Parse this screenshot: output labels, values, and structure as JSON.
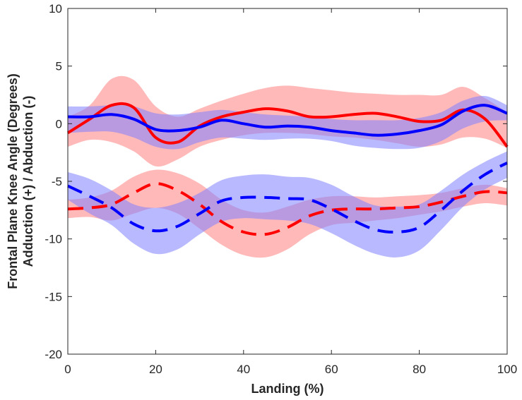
{
  "chart_data": {
    "type": "line",
    "title": "",
    "xlabel": "Landing (%)",
    "ylabel_line1": "Frontal Plane Knee Angle (Degrees)",
    "ylabel_line2": "Adduction (+) / Abduction (-)",
    "xlim": [
      0,
      100
    ],
    "ylim": [
      -20,
      10
    ],
    "xticks": [
      0,
      20,
      40,
      60,
      80,
      100
    ],
    "yticks": [
      -20,
      -15,
      -10,
      -5,
      0,
      5,
      10
    ],
    "grid": false,
    "x": [
      0,
      5,
      10,
      15,
      20,
      25,
      30,
      35,
      40,
      45,
      50,
      55,
      60,
      65,
      70,
      75,
      80,
      85,
      90,
      95,
      100
    ],
    "series": [
      {
        "name": "red-solid",
        "color": "#ff0000",
        "band_color": "#ff8080",
        "dash": "solid",
        "values": [
          -0.8,
          0.4,
          1.6,
          1.4,
          -1.2,
          -1.6,
          -0.2,
          0.6,
          1.0,
          1.3,
          1.1,
          0.6,
          0.6,
          0.8,
          0.9,
          0.6,
          0.2,
          0.3,
          1.2,
          0.4,
          -2.0
        ],
        "lower": [
          -2.0,
          -1.4,
          -1.6,
          -2.4,
          -3.7,
          -3.1,
          -2.0,
          -1.4,
          -1.0,
          -0.8,
          -0.8,
          -0.9,
          -1.1,
          -1.2,
          -1.4,
          -1.7,
          -2.0,
          -1.8,
          -1.2,
          -1.3,
          -2.1
        ],
        "upper": [
          0.6,
          1.6,
          3.9,
          3.8,
          1.5,
          0.6,
          1.3,
          2.0,
          2.6,
          3.1,
          3.3,
          3.1,
          2.9,
          2.7,
          2.6,
          2.5,
          2.5,
          2.5,
          3.2,
          2.2,
          1.0
        ]
      },
      {
        "name": "blue-solid",
        "color": "#0000ff",
        "band_color": "#8080ff",
        "dash": "solid",
        "values": [
          0.6,
          0.6,
          0.8,
          0.4,
          -0.5,
          -0.6,
          -0.3,
          0.3,
          0.0,
          -0.3,
          -0.2,
          -0.3,
          -0.6,
          -0.8,
          -1.0,
          -0.9,
          -0.6,
          -0.1,
          1.1,
          1.6,
          0.9
        ],
        "lower": [
          -0.8,
          -0.7,
          -0.7,
          -1.2,
          -2.0,
          -2.2,
          -1.6,
          -1.2,
          -1.3,
          -1.4,
          -1.3,
          -1.3,
          -1.5,
          -1.9,
          -2.1,
          -2.2,
          -2.1,
          -1.5,
          -0.4,
          0.2,
          0.3
        ],
        "upper": [
          1.5,
          1.5,
          1.6,
          1.5,
          0.9,
          0.8,
          1.0,
          1.2,
          1.0,
          0.8,
          0.7,
          0.6,
          0.4,
          0.3,
          0.3,
          0.3,
          0.5,
          1.0,
          2.0,
          2.4,
          1.6
        ]
      },
      {
        "name": "red-dashed",
        "color": "#ff0000",
        "band_color": "#ff8080",
        "dash": "dashed",
        "values": [
          -7.4,
          -7.3,
          -7.0,
          -6.0,
          -5.2,
          -5.8,
          -7.0,
          -8.5,
          -9.4,
          -9.6,
          -9.0,
          -8.0,
          -7.5,
          -7.4,
          -7.4,
          -7.3,
          -7.2,
          -6.8,
          -6.3,
          -5.9,
          -6.0
        ],
        "lower": [
          -8.2,
          -8.1,
          -8.4,
          -7.8,
          -7.3,
          -7.8,
          -9.1,
          -10.5,
          -11.4,
          -11.6,
          -10.9,
          -9.6,
          -8.8,
          -8.6,
          -8.4,
          -8.2,
          -7.9,
          -7.6,
          -7.2,
          -6.9,
          -7.1
        ],
        "upper": [
          -6.6,
          -6.4,
          -5.8,
          -4.6,
          -4.0,
          -4.3,
          -5.2,
          -6.6,
          -7.5,
          -7.7,
          -7.2,
          -6.6,
          -6.3,
          -6.3,
          -6.4,
          -6.3,
          -6.2,
          -6.0,
          -5.6,
          -5.3,
          -5.6
        ]
      },
      {
        "name": "blue-dashed",
        "color": "#0000ff",
        "band_color": "#8080ff",
        "dash": "dashed",
        "values": [
          -5.4,
          -6.3,
          -7.3,
          -8.7,
          -9.3,
          -8.9,
          -7.8,
          -6.7,
          -6.4,
          -6.4,
          -6.5,
          -6.6,
          -7.4,
          -8.4,
          -9.2,
          -9.4,
          -9.0,
          -7.5,
          -5.8,
          -4.4,
          -3.4
        ],
        "lower": [
          -6.6,
          -7.8,
          -8.8,
          -10.4,
          -11.3,
          -10.9,
          -9.6,
          -8.5,
          -8.2,
          -8.3,
          -8.4,
          -8.7,
          -9.5,
          -10.5,
          -11.3,
          -11.6,
          -11.0,
          -9.2,
          -7.2,
          -5.7,
          -4.7
        ],
        "upper": [
          -4.2,
          -4.8,
          -5.8,
          -7.0,
          -7.3,
          -6.9,
          -6.0,
          -4.9,
          -4.5,
          -4.4,
          -4.6,
          -4.7,
          -5.3,
          -6.3,
          -7.1,
          -7.2,
          -7.0,
          -5.8,
          -4.4,
          -3.3,
          -2.4
        ]
      }
    ]
  }
}
